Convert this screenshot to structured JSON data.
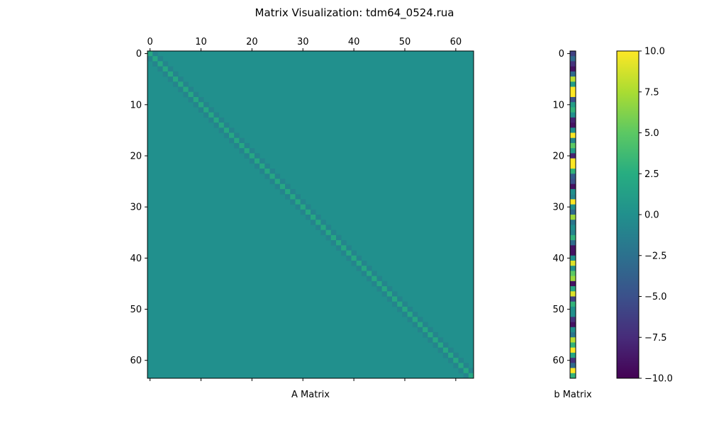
{
  "title": "Matrix Visualization: tdm64_0524.rua",
  "chart_data": [
    {
      "type": "heatmap",
      "name": "A Matrix",
      "xlabel": "A Matrix",
      "rows": 64,
      "cols": 64,
      "x_ticks": [
        0,
        10,
        20,
        30,
        40,
        50,
        60
      ],
      "y_ticks": [
        0,
        10,
        20,
        30,
        40,
        50,
        60
      ],
      "structure": "tridiagonal",
      "off_band_value": 0,
      "diagonal_value": 2,
      "sub_diagonal_value": -1,
      "super_diagonal_value": -1
    },
    {
      "type": "heatmap",
      "name": "b Matrix",
      "xlabel": "b Matrix",
      "rows": 64,
      "cols": 1,
      "y_ticks": [
        0,
        10,
        20,
        30,
        40,
        50,
        60
      ],
      "values": [
        -6,
        -3,
        -7,
        -9,
        -3,
        8,
        1,
        10,
        10,
        -5,
        1,
        3,
        0,
        -8,
        -9,
        0,
        10,
        -1,
        5,
        1,
        -8,
        10,
        10,
        3,
        -4,
        -5,
        -9,
        0,
        -1,
        10,
        0,
        -3,
        7,
        -2,
        0,
        -1,
        3,
        -3,
        -9,
        -9,
        0,
        9,
        0,
        5,
        7,
        -9,
        2,
        9,
        -6,
        3,
        0,
        0,
        -7,
        -9,
        0,
        -2,
        8,
        3,
        10,
        2,
        -7,
        -3,
        10,
        3
      ]
    },
    {
      "type": "colorbar",
      "colormap": "viridis",
      "range": [
        -10,
        10
      ],
      "ticks": [
        10.0,
        7.5,
        5.0,
        2.5,
        0.0,
        -2.5,
        -5.0,
        -7.5,
        -10.0
      ],
      "tick_labels": [
        "10.0",
        "7.5",
        "5.0",
        "2.5",
        "0.0",
        "−2.5",
        "−5.0",
        "−7.5",
        "−10.0"
      ]
    }
  ]
}
